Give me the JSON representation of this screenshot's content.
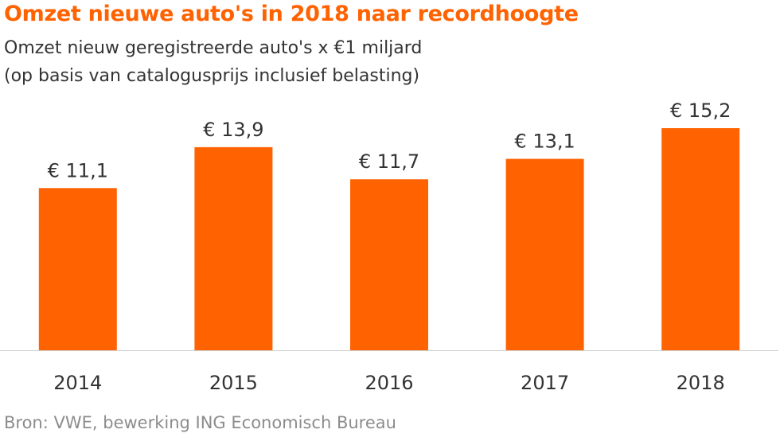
{
  "title": "Omzet nieuwe auto's in 2018 naar recordhoogte",
  "subtitle_line1": "Omzet nieuw geregistreerde auto's x €1 miljard",
  "subtitle_line2": "(op basis van catalogusprijs inclusief belasting)",
  "source": "Bron: VWE, bewerking ING Economisch Bureau",
  "colors": {
    "bar": "#ff6200",
    "title": "#ff6200",
    "axis": "#d0d0d0"
  },
  "chart_data": {
    "type": "bar",
    "title": "Omzet nieuwe auto's in 2018 naar recordhoogte",
    "xlabel": "",
    "ylabel": "",
    "categories": [
      "2014",
      "2015",
      "2016",
      "2017",
      "2018"
    ],
    "values": [
      11.1,
      13.9,
      11.7,
      13.1,
      15.2
    ],
    "value_labels": [
      "€ 11,1",
      "€ 13,9",
      "€ 11,7",
      "€ 13,1",
      "€ 15,2"
    ],
    "ylim": [
      0,
      15.2
    ],
    "grid": false,
    "legend": "none"
  }
}
